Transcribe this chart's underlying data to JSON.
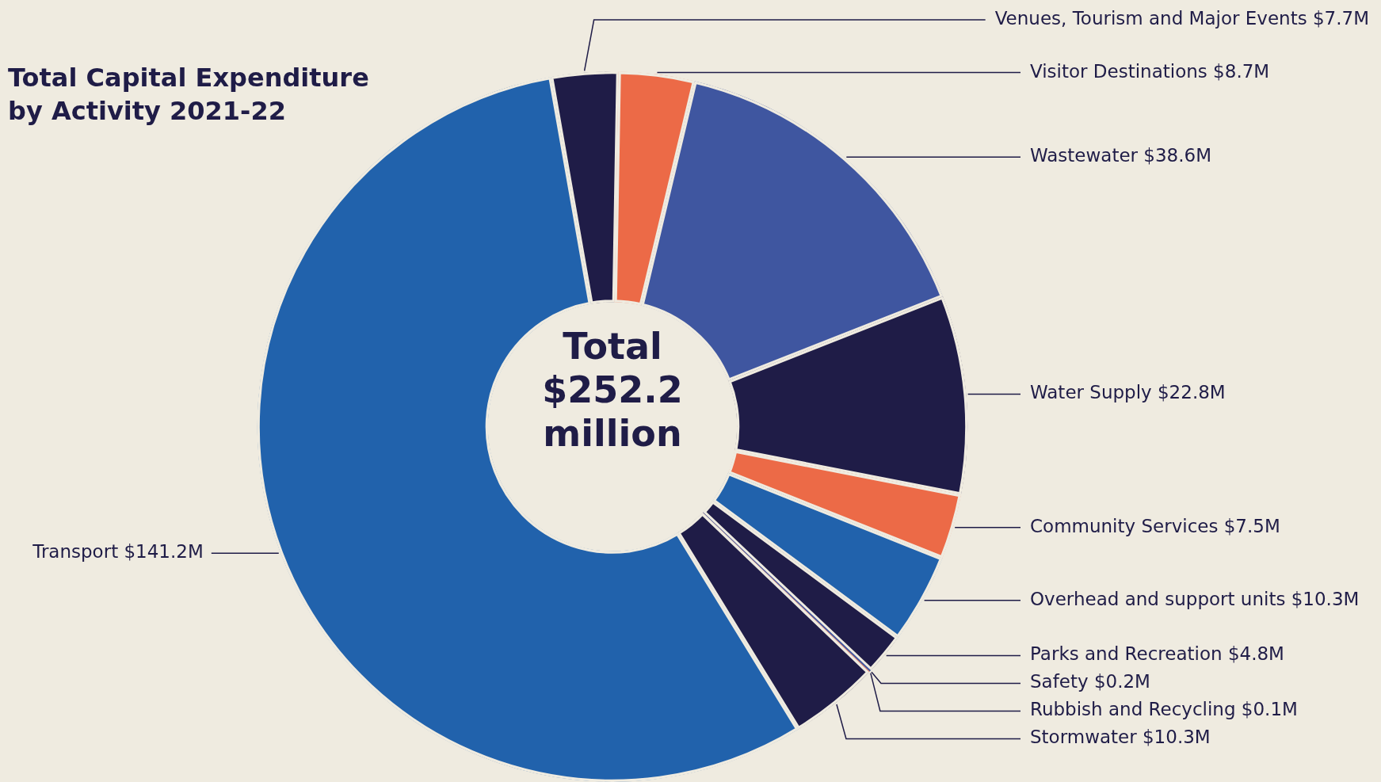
{
  "chart_data": {
    "type": "donut",
    "title": "Total Capital Expenditure by Activity 2021-22",
    "categories": [
      "Venues, Tourism and Major Events",
      "Visitor Destinations",
      "Wastewater",
      "Water Supply",
      "Community Services",
      "Overhead and support units",
      "Parks and Recreation",
      "Safety",
      "Rubbish and Recycling",
      "Stormwater",
      "Transport"
    ],
    "values": [
      7.7,
      8.7,
      38.6,
      22.8,
      7.5,
      10.3,
      4.8,
      0.2,
      0.1,
      10.3,
      141.2
    ],
    "value_labels": [
      "$7.7M",
      "$8.7M",
      "$38.6M",
      "$22.8M",
      "$7.5M",
      "$10.3M",
      "$4.8M",
      "$0.2M",
      "$0.1M",
      "$10.3M",
      "$141.2M"
    ],
    "colors": [
      "#1f1c47",
      "#ec6a47",
      "#3f56a0",
      "#1f1c47",
      "#ec6a47",
      "#2162ac",
      "#1f1c47",
      "#3f56a0",
      "#ec6a47",
      "#1f1c47",
      "#2162ac"
    ],
    "annotations": [
      "Total $252.2 million"
    ],
    "legend": false
  }
}
